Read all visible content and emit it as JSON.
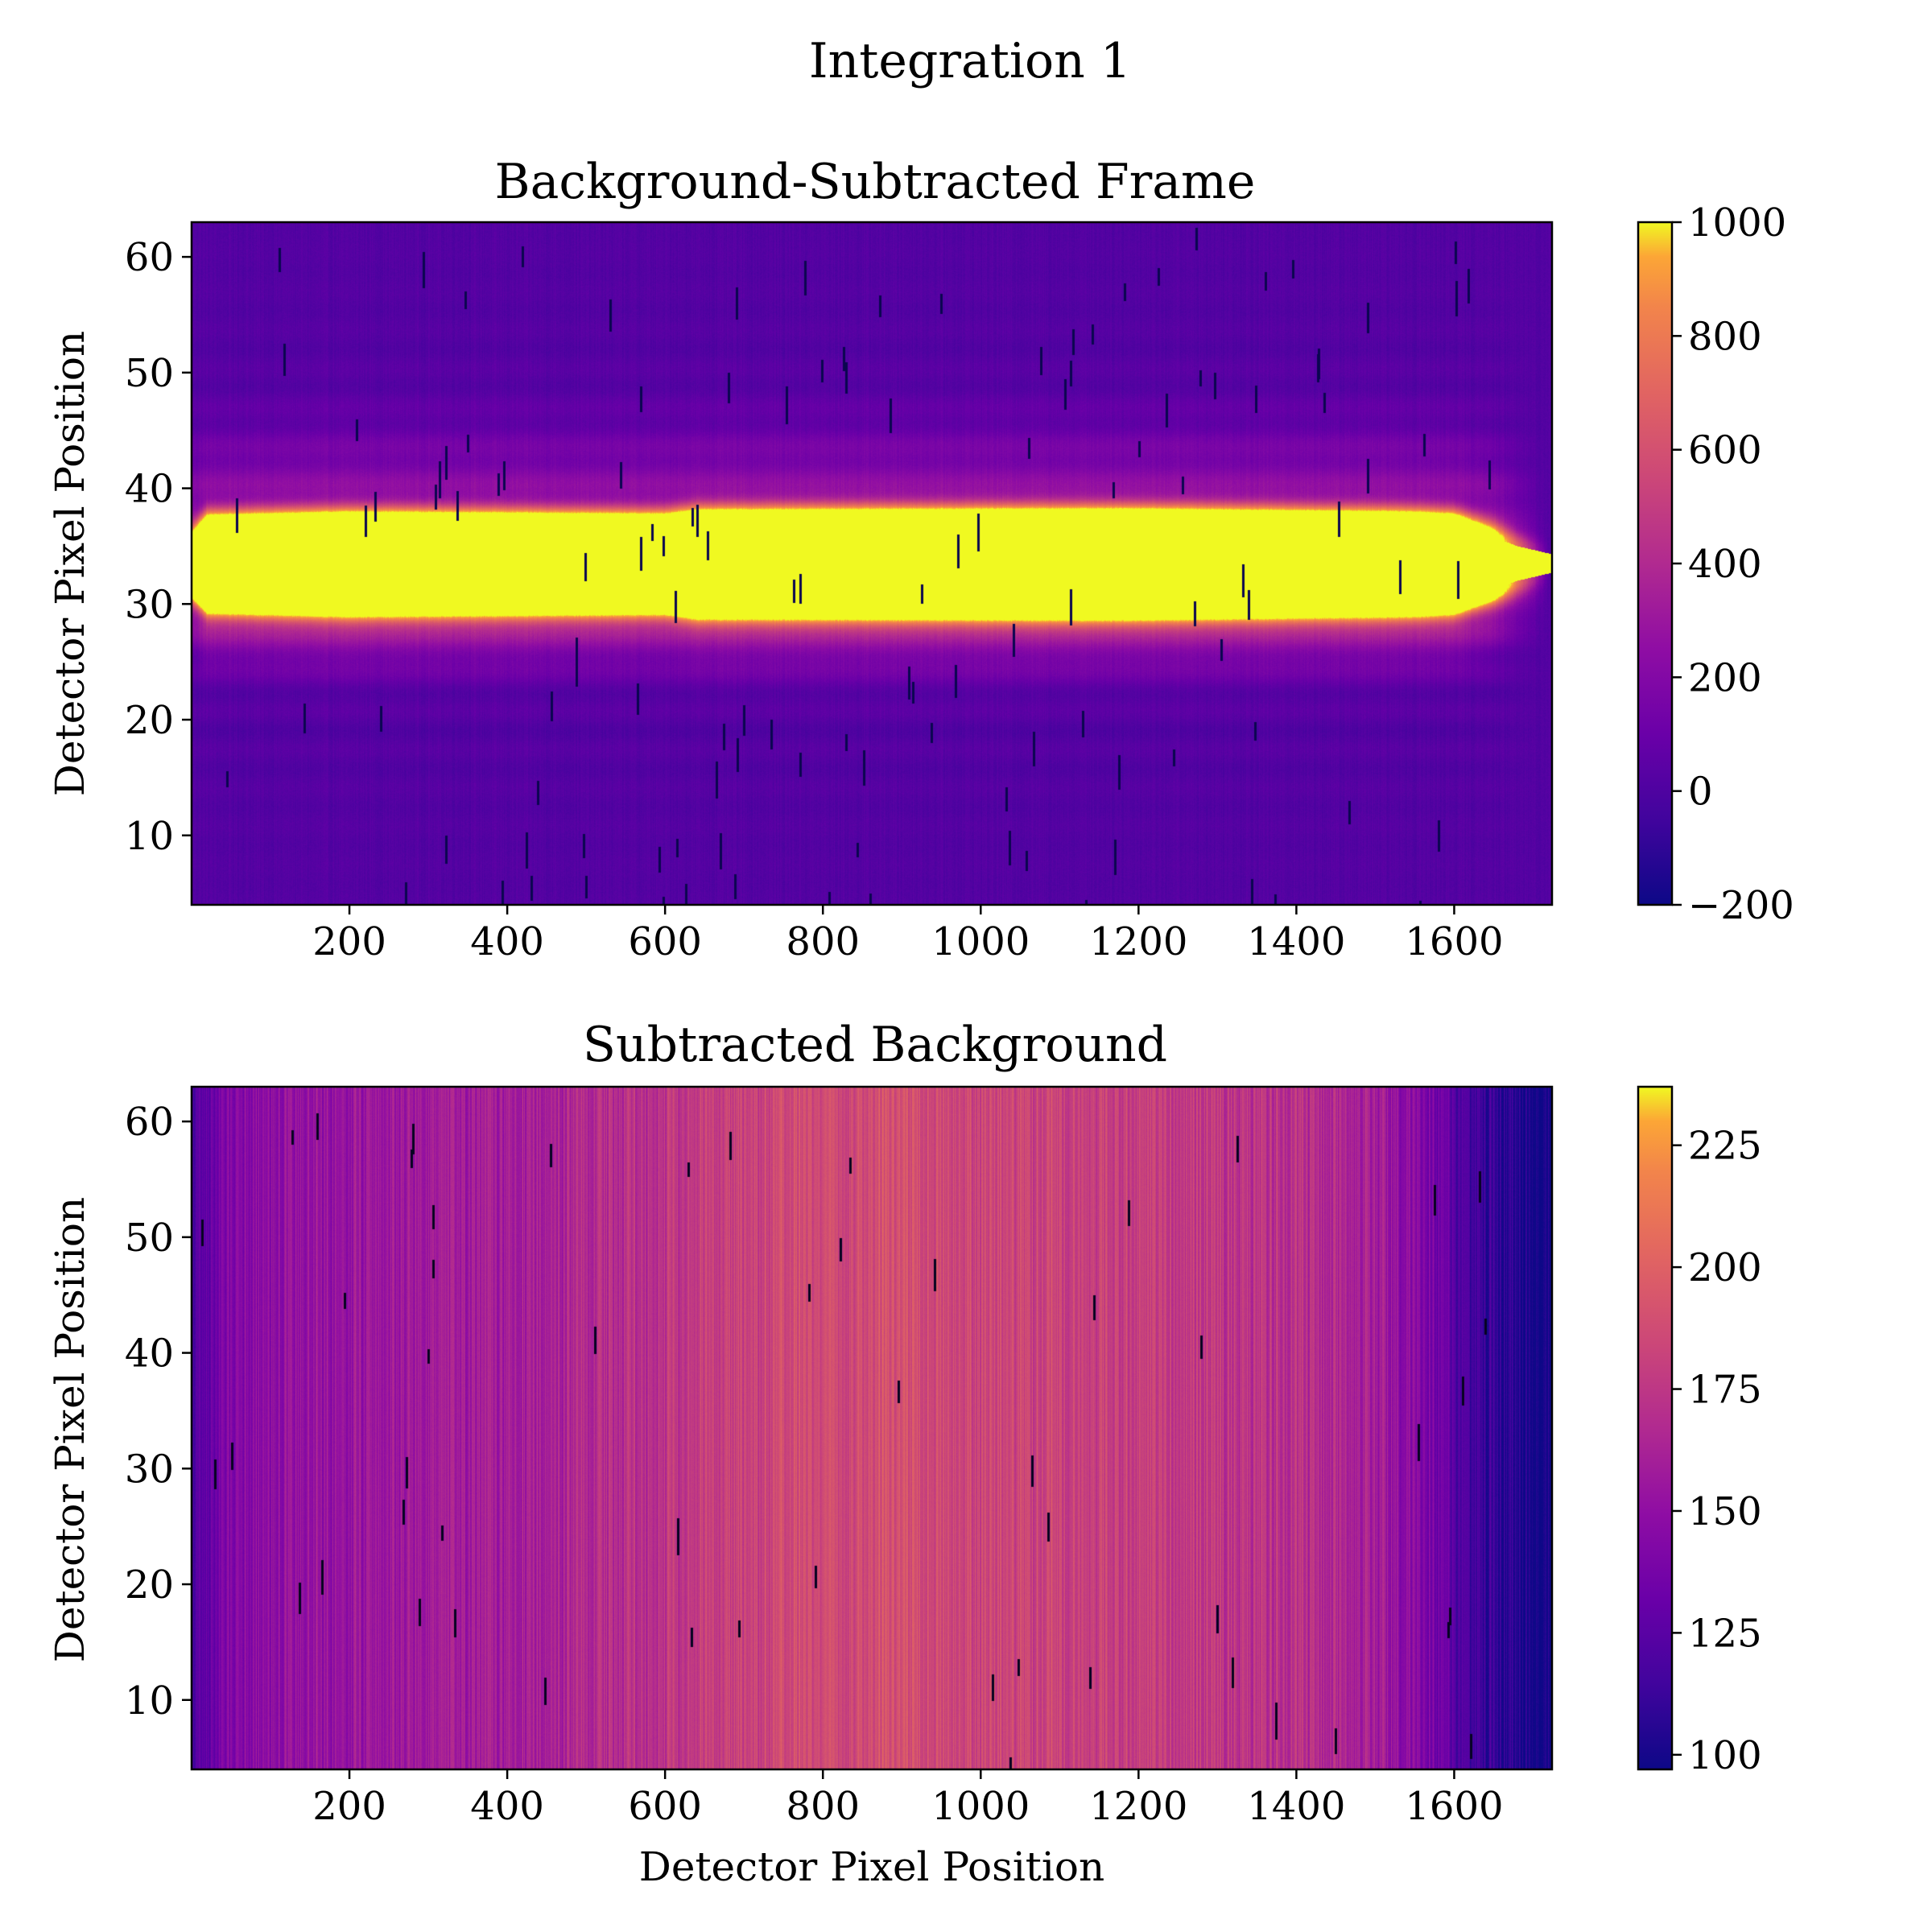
{
  "figure": {
    "title": "Integration 1"
  },
  "chart_data": [
    {
      "type": "heatmap",
      "title": "Background-Subtracted Frame",
      "xlabel": "",
      "ylabel": "Detector Pixel Position",
      "xlim": [
        0,
        1724
      ],
      "ylim": [
        4,
        63
      ],
      "xticks": [
        200,
        400,
        600,
        800,
        1000,
        1200,
        1400,
        1600
      ],
      "yticks": [
        10,
        20,
        30,
        40,
        50,
        60
      ],
      "colormap": "plasma",
      "colorbar": {
        "range": [
          -200,
          1000
        ],
        "ticks": [
          -200,
          0,
          200,
          400,
          600,
          800,
          1000
        ]
      },
      "trace": {
        "center_row": 33.5,
        "saturated_half_width_by_x": [
          [
            0,
            2.0
          ],
          [
            20,
            3.5
          ],
          [
            200,
            3.8
          ],
          [
            600,
            3.6
          ],
          [
            640,
            4.0
          ],
          [
            1180,
            4.1
          ],
          [
            1550,
            3.8
          ],
          [
            1600,
            3.6
          ],
          [
            1680,
            1.5
          ],
          [
            1724,
            0.8
          ]
        ],
        "peak_value": 1000,
        "halo_values": {
          "rows_24_to_29": 400,
          "rows_38_to_48": 250,
          "background": 20
        }
      },
      "spectral_features": [
        {
          "x_range": [
            600,
            640
          ],
          "note": "brightness step"
        },
        {
          "x_range": [
            1180,
            1190
          ],
          "note": "brightness step"
        },
        {
          "x_range": [
            1545,
            1560
          ],
          "note": "brightness step"
        }
      ]
    },
    {
      "type": "heatmap",
      "title": "Subtracted Background",
      "xlabel": "Detector Pixel Position",
      "ylabel": "Detector Pixel Position",
      "xlim": [
        0,
        1724
      ],
      "ylim": [
        4,
        63
      ],
      "xticks": [
        200,
        400,
        600,
        800,
        1000,
        1200,
        1400,
        1600
      ],
      "yticks": [
        10,
        20,
        30,
        40,
        50,
        60
      ],
      "colormap": "plasma",
      "colorbar": {
        "range": [
          97,
          237
        ],
        "ticks": [
          100,
          125,
          150,
          175,
          200,
          225
        ]
      },
      "column_profile": [
        [
          0,
          120
        ],
        [
          20,
          130
        ],
        [
          60,
          148
        ],
        [
          200,
          155
        ],
        [
          400,
          160
        ],
        [
          600,
          175
        ],
        [
          800,
          188
        ],
        [
          900,
          190
        ],
        [
          1000,
          185
        ],
        [
          1200,
          180
        ],
        [
          1400,
          172
        ],
        [
          1500,
          160
        ],
        [
          1560,
          145
        ],
        [
          1600,
          125
        ],
        [
          1650,
          110
        ],
        [
          1700,
          98
        ],
        [
          1724,
          98
        ]
      ]
    }
  ]
}
